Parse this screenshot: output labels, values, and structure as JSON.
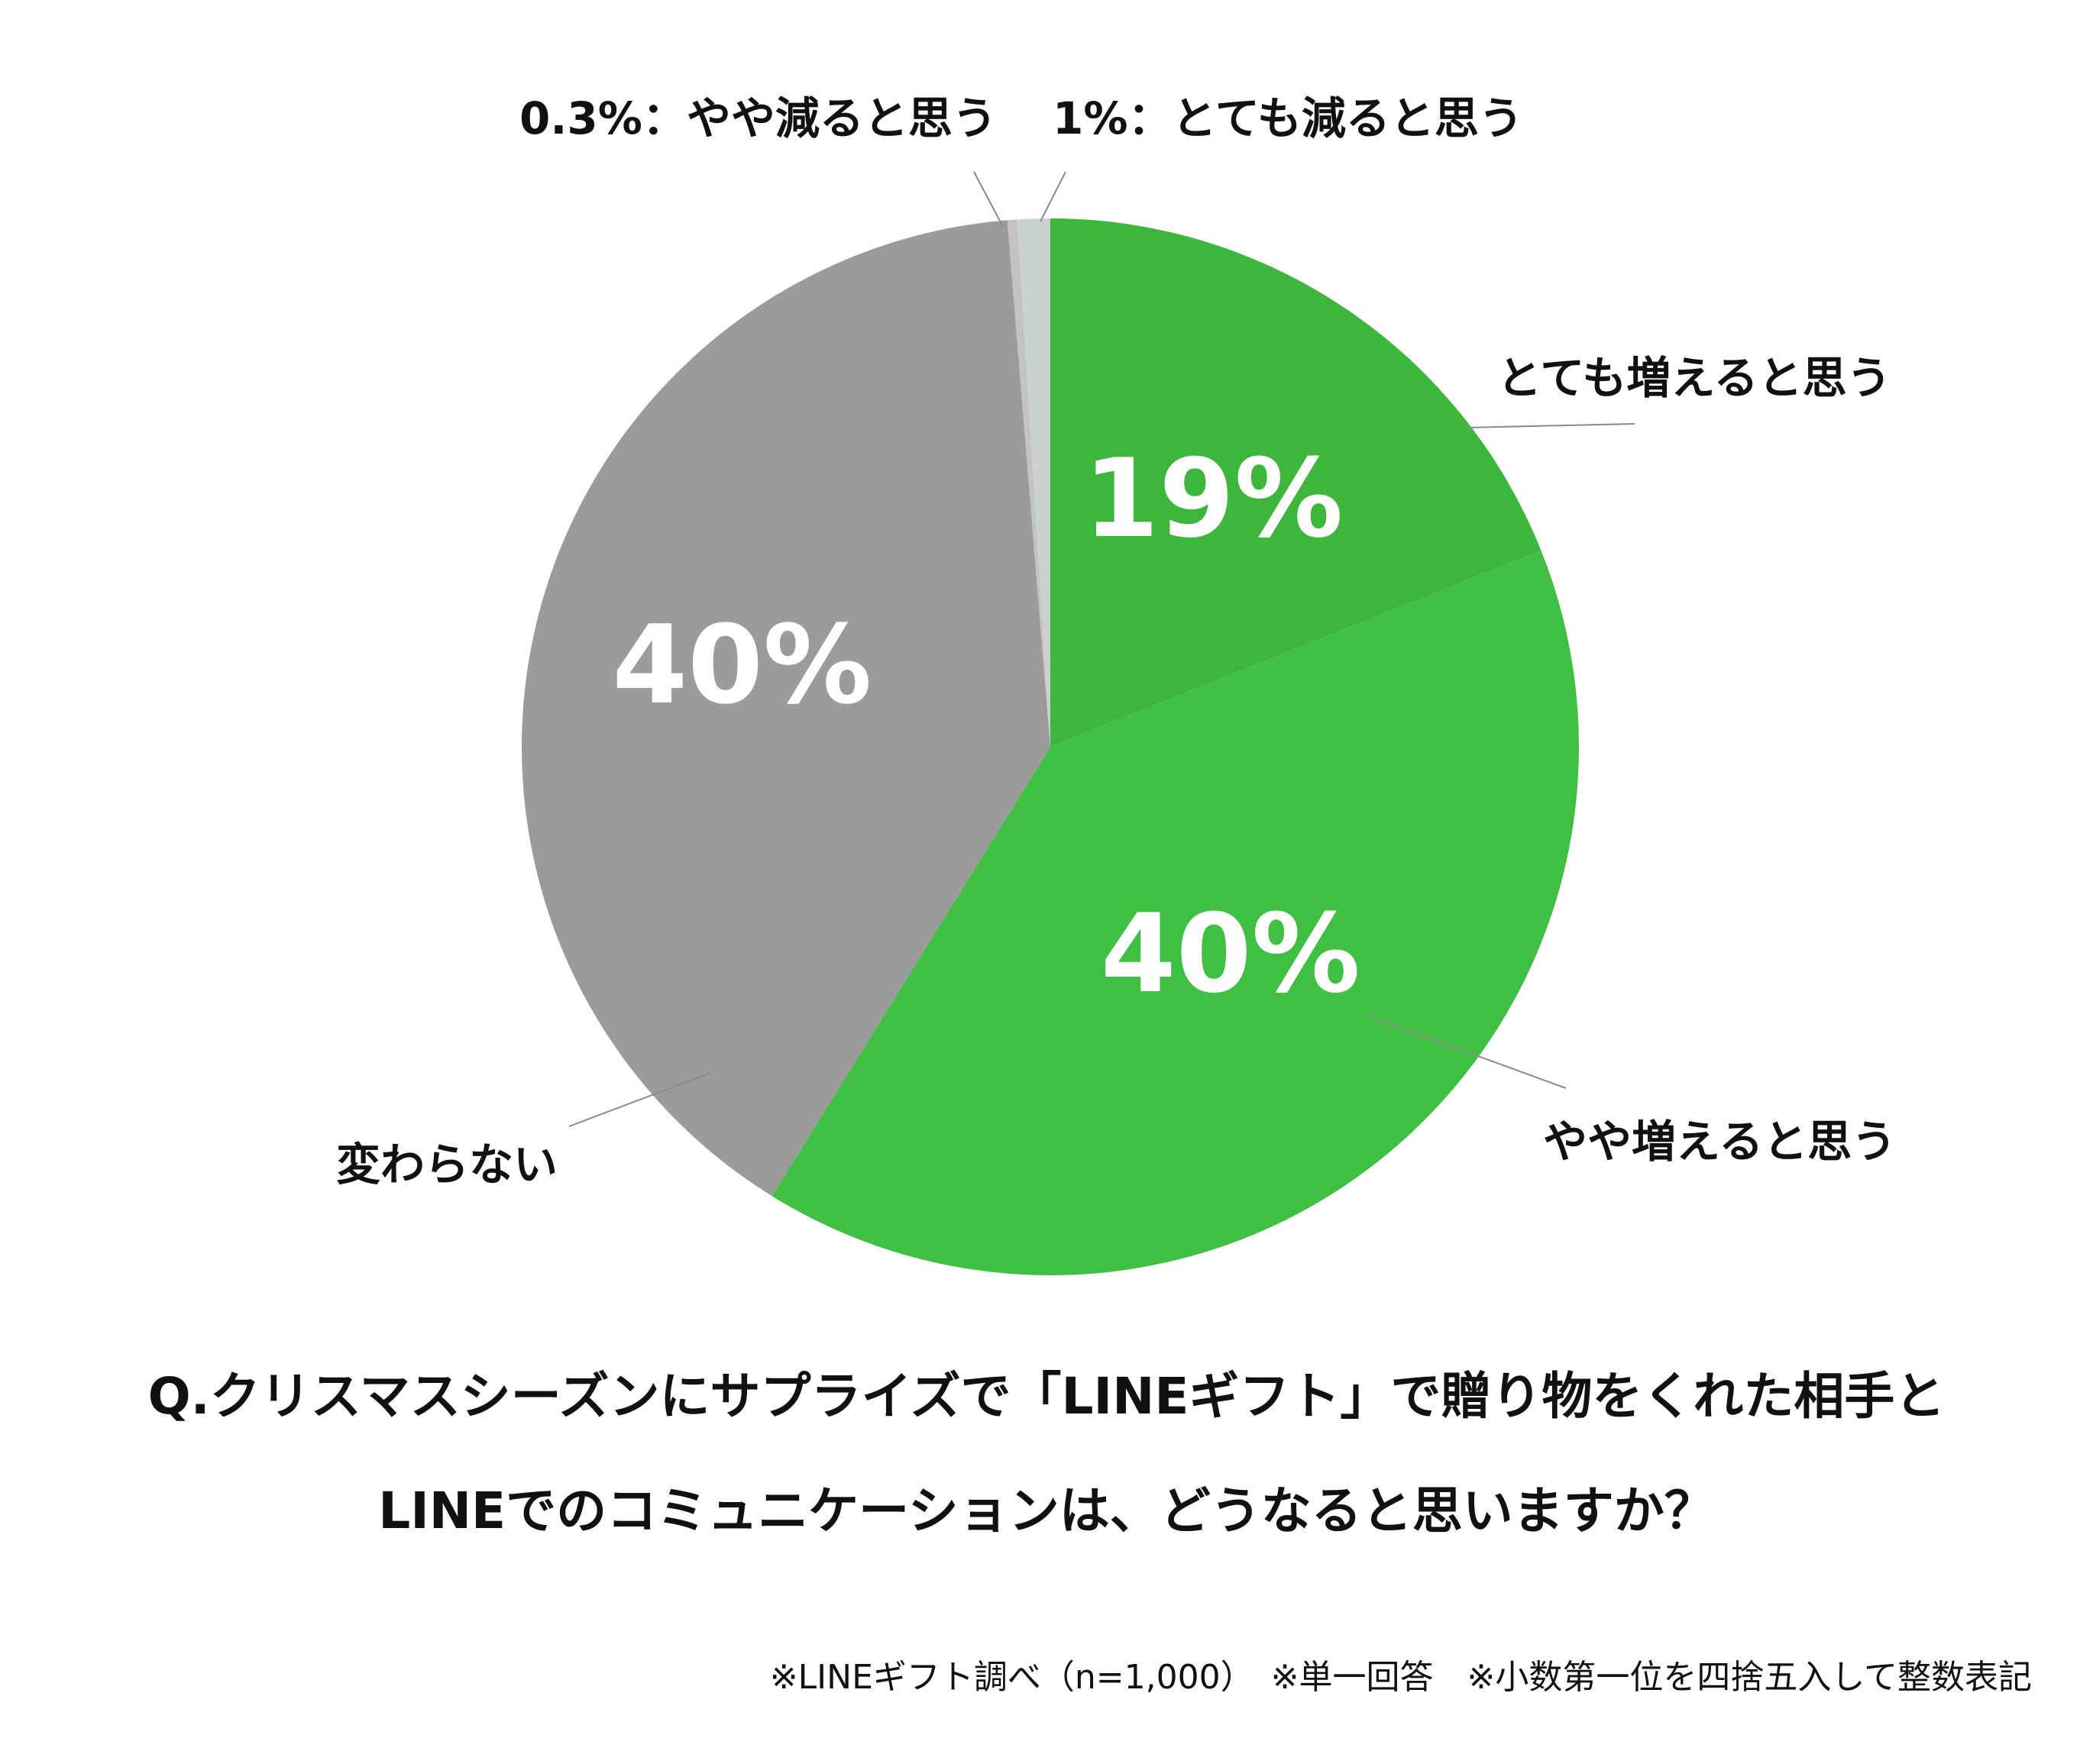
{
  "chart_data": {
    "type": "pie",
    "start_angle": "12 o'clock, clockwise",
    "slices": [
      {
        "label": "とても増えると思う",
        "value": 19,
        "value_label": "19%",
        "color": "#3db63c"
      },
      {
        "label": "やや増えると思う",
        "value": 40,
        "value_label": "40%",
        "color": "#40c043"
      },
      {
        "label": "変わらない",
        "value": 40,
        "value_label": "40%",
        "color": "#9b9b9b"
      },
      {
        "label": "0.3%：やや減ると思う",
        "value": 0.3,
        "value_label": "",
        "color": "#c3c3c3"
      },
      {
        "label": "1%：とても減ると思う",
        "value": 1,
        "value_label": "",
        "color": "#c9d1d1"
      }
    ]
  },
  "question": {
    "line1": "Q.クリスマスシーズンにサプライズで「LINEギフト」で贈り物をくれた相手と",
    "line2": "LINEでのコミュニケーションは、どうなると思いますか？"
  },
  "note": "※LINEギフト調べ（n=1,000）　※単一回答　※小数第一位を四捨五入して整数表記"
}
